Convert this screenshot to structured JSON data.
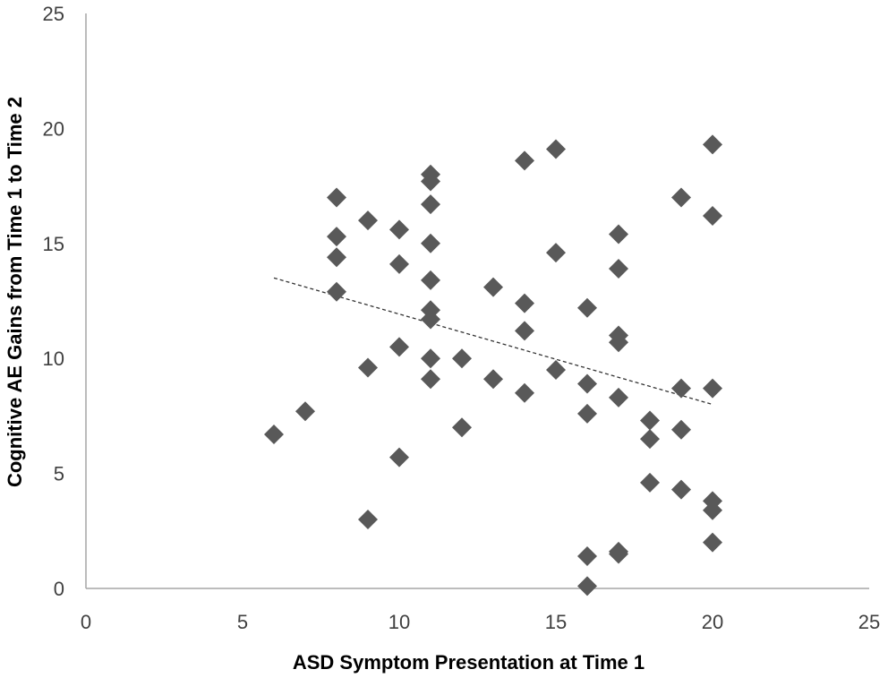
{
  "chart_data": {
    "type": "scatter",
    "title": "",
    "xlabel": "ASD Symptom Presentation at Time 1",
    "ylabel": "Cognitive AE Gains from Time 1 to Time 2",
    "xlim": [
      0,
      25
    ],
    "ylim": [
      0,
      25
    ],
    "x_ticks": [
      "0",
      "5",
      "10",
      "15",
      "20",
      "25"
    ],
    "y_ticks": [
      "0",
      "5",
      "10",
      "15",
      "20",
      "25"
    ],
    "grid": false,
    "legend": "none",
    "colors": {
      "marker": "#595959",
      "trendline": "#333333",
      "axis": "#a6a6a6"
    },
    "series": [
      {
        "marker": "diamond",
        "points": [
          [
            6,
            6.7
          ],
          [
            7,
            7.7
          ],
          [
            8,
            17.0
          ],
          [
            8,
            15.3
          ],
          [
            8,
            14.4
          ],
          [
            8,
            12.9
          ],
          [
            9,
            16.0
          ],
          [
            9,
            9.6
          ],
          [
            9,
            3.0
          ],
          [
            10,
            15.6
          ],
          [
            10,
            14.1
          ],
          [
            10,
            10.5
          ],
          [
            10,
            5.7
          ],
          [
            11,
            18.0
          ],
          [
            11,
            17.7
          ],
          [
            11,
            16.7
          ],
          [
            11,
            15.0
          ],
          [
            11,
            13.4
          ],
          [
            11,
            12.1
          ],
          [
            11,
            11.7
          ],
          [
            11,
            10.0
          ],
          [
            11,
            9.1
          ],
          [
            12,
            10.0
          ],
          [
            12,
            7.0
          ],
          [
            13,
            13.1
          ],
          [
            13,
            9.1
          ],
          [
            14,
            18.6
          ],
          [
            14,
            12.4
          ],
          [
            14,
            11.2
          ],
          [
            14,
            8.5
          ],
          [
            15,
            19.1
          ],
          [
            15,
            14.6
          ],
          [
            15,
            9.5
          ],
          [
            16,
            12.2
          ],
          [
            16,
            8.9
          ],
          [
            16,
            7.6
          ],
          [
            16,
            1.4
          ],
          [
            16,
            0.1
          ],
          [
            17,
            15.4
          ],
          [
            17,
            13.9
          ],
          [
            17,
            11.0
          ],
          [
            17,
            10.7
          ],
          [
            17,
            8.3
          ],
          [
            17,
            1.6
          ],
          [
            17,
            1.5
          ],
          [
            18,
            7.3
          ],
          [
            18,
            6.5
          ],
          [
            18,
            4.6
          ],
          [
            19,
            17.0
          ],
          [
            19,
            8.7
          ],
          [
            19,
            6.9
          ],
          [
            19,
            4.3
          ],
          [
            20,
            19.3
          ],
          [
            20,
            16.2
          ],
          [
            20,
            8.7
          ],
          [
            20,
            3.8
          ],
          [
            20,
            3.4
          ],
          [
            20,
            2.0
          ]
        ]
      }
    ],
    "trendline": {
      "style": "dashed",
      "from": [
        6,
        13.5
      ],
      "to": [
        20,
        8.0
      ]
    }
  }
}
